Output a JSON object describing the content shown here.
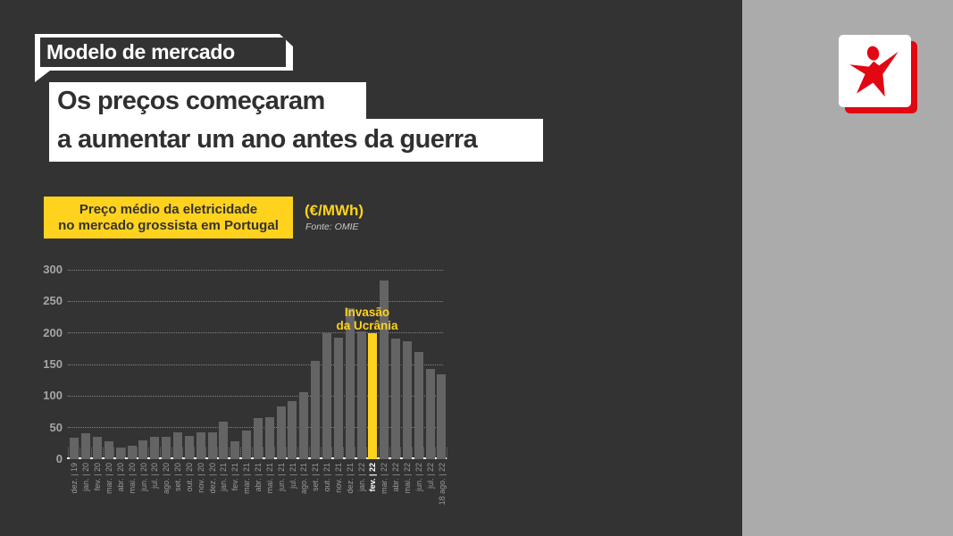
{
  "slide": {
    "kicker": "Modelo de mercado",
    "headline": {
      "line1": "Os preços começaram",
      "line2": "a aumentar um ano antes da guerra"
    },
    "legend": {
      "line1": "Preço médio da eletricidade",
      "line2": "no mercado grossista em Portugal"
    },
    "unit_label": "(€/MWh)",
    "source_label": "Fonte: OMIE",
    "annotation": {
      "line1": "Invasão",
      "line2": "da Ucrânia"
    }
  },
  "icons": {
    "logo": "red-star-figure-logo"
  },
  "colors": {
    "background": "#333333",
    "side_panel": "#ababab",
    "accent_yellow": "#ffd21e",
    "bar_gray": "#646464",
    "logo_red": "#e30613",
    "headline_text": "#303030",
    "axis_label_gray": "#a6a6a6",
    "xlabel_gray": "#9a9a9a"
  },
  "chart_data": {
    "type": "bar",
    "title": "Preço médio da eletricidade no mercado grossista em Portugal",
    "unit": "€/MWh",
    "source": "OMIE",
    "xlabel": "",
    "ylabel": "€/MWh",
    "ylim": [
      0,
      300
    ],
    "yticks": [
      0,
      50,
      100,
      150,
      200,
      250,
      300
    ],
    "grid": "dotted horizontal",
    "legend_position": "top-left",
    "annotation": "Invasão da Ucrânia",
    "highlight_index": 26,
    "highlight_label": "fev. | 22",
    "categories": [
      "dez. | 19",
      "jan. | 20",
      "fev. | 20",
      "mar. | 20",
      "abr. | 20",
      "mai. | 20",
      "jun. | 20",
      "jul. | 20",
      "ago. | 20",
      "set. | 20",
      "out. | 20",
      "nov. | 20",
      "dez. | 20",
      "jan. | 21",
      "fev. | 21",
      "mar. | 21",
      "abr. | 21",
      "mai. | 21",
      "jun. | 21",
      "jul. | 21",
      "ago. | 21",
      "set. | 21",
      "out. | 21",
      "nov. | 21",
      "dez. | 21",
      "jan. | 22",
      "fev. | 22",
      "mar. | 22",
      "abr. | 22",
      "mai. | 22",
      "jun. | 22",
      "jul. | 22",
      "18 ago. | 22"
    ],
    "values": [
      34,
      41,
      36,
      28,
      18,
      21,
      30,
      35,
      36,
      42,
      37,
      42,
      42,
      60,
      28,
      45,
      65,
      67,
      83,
      92,
      106,
      156,
      200,
      193,
      239,
      202,
      200,
      283,
      191,
      187,
      170,
      143,
      135
    ]
  }
}
